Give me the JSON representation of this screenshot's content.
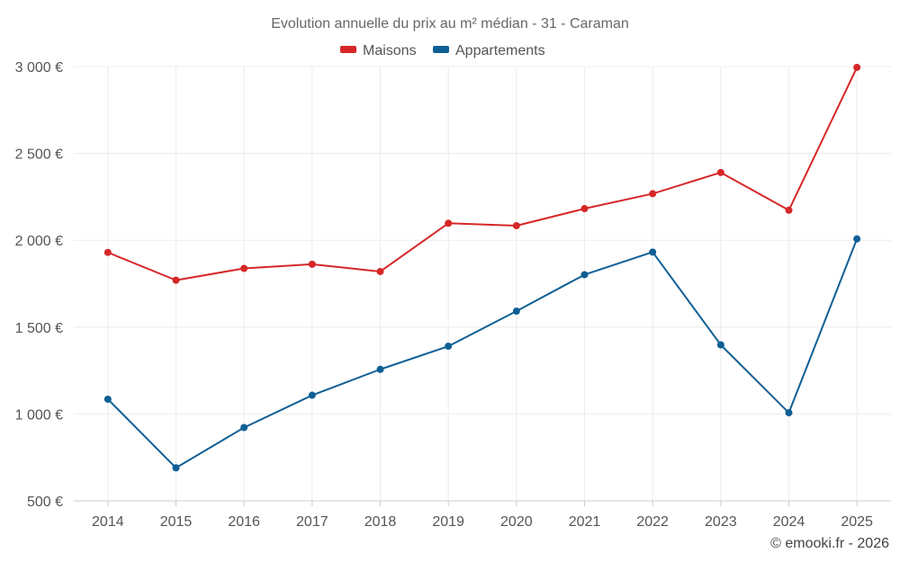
{
  "chart_data": {
    "type": "line",
    "title": "Evolution annuelle du prix au m² médian - 31 - Caraman",
    "categories": [
      "2014",
      "2015",
      "2016",
      "2017",
      "2018",
      "2019",
      "2020",
      "2021",
      "2022",
      "2023",
      "2024",
      "2025"
    ],
    "series": [
      {
        "name": "Maisons",
        "color": "#d62728",
        "values": [
          1930,
          1770,
          1838,
          1862,
          1820,
          2098,
          2084,
          2182,
          2268,
          2390,
          2173,
          2995
        ]
      },
      {
        "name": "Appartements",
        "color": "#0f5f95",
        "values": [
          1085,
          690,
          922,
          1108,
          1257,
          1390,
          1592,
          1802,
          1932,
          1398,
          1007,
          2008
        ]
      }
    ],
    "yticks": [
      500,
      1000,
      1500,
      2000,
      2500,
      3000
    ],
    "ytick_labels": [
      "500 €",
      "1 000 €",
      "1 500 €",
      "2 000 €",
      "2 500 €",
      "3 000 €"
    ],
    "ylim": [
      500,
      3000
    ],
    "xlabel": "",
    "ylabel": "",
    "grid": true,
    "legend_position": "top-center"
  },
  "credit": "© emooki.fr - 2026"
}
